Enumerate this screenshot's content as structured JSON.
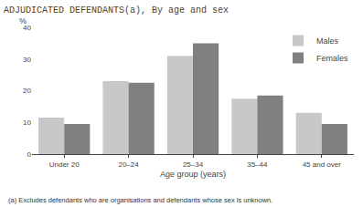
{
  "chart_data": {
    "type": "bar",
    "title": "ADJUDICATED DEFENDANTS(a), By age and sex",
    "categories": [
      "Under 20",
      "20–24",
      "25–34",
      "35–44",
      "45 and over"
    ],
    "series": [
      {
        "name": "Males",
        "color": "#c8c8c8",
        "values": [
          11.5,
          23,
          31,
          17.5,
          13
        ]
      },
      {
        "name": "Females",
        "color": "#808080",
        "values": [
          9.5,
          22.5,
          35,
          18.5,
          9.5
        ]
      }
    ],
    "xlabel": "Age group (years)",
    "ylabel": "%",
    "ylim": [
      0,
      40
    ],
    "yticks": [
      0,
      10,
      20,
      30,
      40
    ],
    "grid": false,
    "legend": "upper right",
    "annotations": [
      "(a) Excludes defendants who are organisations and defendants whose sex is unknown."
    ]
  }
}
